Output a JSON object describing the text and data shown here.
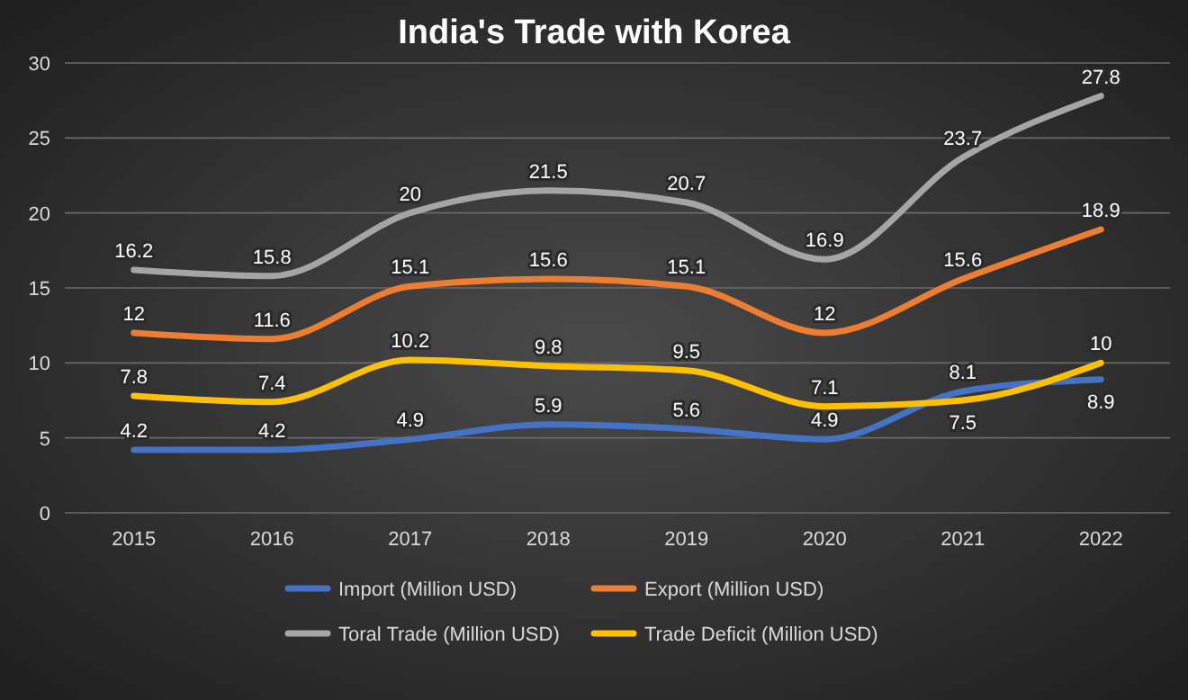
{
  "chart_data": {
    "type": "line",
    "title": "India's Trade with Korea",
    "categories": [
      "2015",
      "2016",
      "2017",
      "2018",
      "2019",
      "2020",
      "2021",
      "2022"
    ],
    "series": [
      {
        "name": "Import (Million USD)",
        "color": "#4472c4",
        "values": [
          4.2,
          4.2,
          4.9,
          5.9,
          5.6,
          4.9,
          8.1,
          8.9
        ]
      },
      {
        "name": "Export (Million USD)",
        "color": "#ed7d31",
        "values": [
          12,
          11.6,
          15.1,
          15.6,
          15.1,
          12,
          15.6,
          18.9
        ]
      },
      {
        "name": "Toral Trade (Million USD)",
        "color": "#a5a5a5",
        "values": [
          16.2,
          15.8,
          20,
          21.5,
          20.7,
          16.9,
          23.7,
          27.8
        ]
      },
      {
        "name": "Trade Deficit (Million USD)",
        "color": "#ffc000",
        "values": [
          7.8,
          7.4,
          10.2,
          9.8,
          9.5,
          7.1,
          7.5,
          10
        ]
      }
    ],
    "ylim": [
      0,
      30
    ],
    "yticks": [
      0,
      5,
      10,
      15,
      20,
      25,
      30
    ],
    "grid": "y",
    "legend": "bottom",
    "data_labels": true,
    "marker": "none",
    "line_style": "solid"
  }
}
